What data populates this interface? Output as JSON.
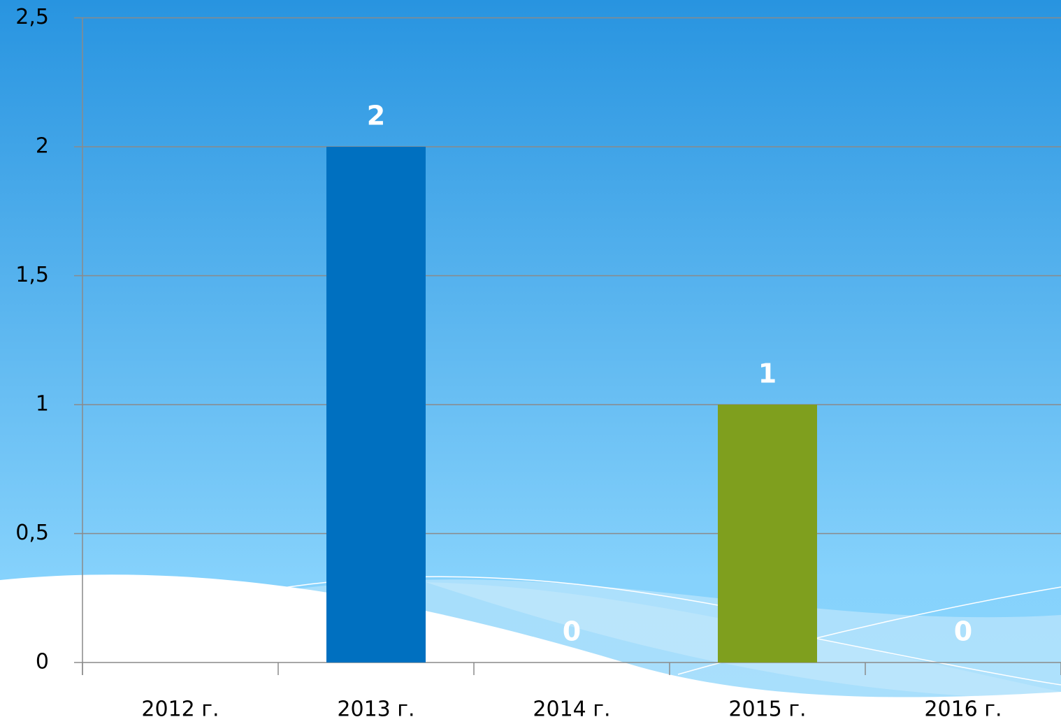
{
  "chart_data": {
    "type": "bar",
    "categories": [
      "2012 г.",
      "2013 г.",
      "2014 г.",
      "2015 г.",
      "2016 г."
    ],
    "values": [
      null,
      2,
      0,
      1,
      0
    ],
    "colors": [
      "#0070c0",
      "#0070c0",
      "#0070c0",
      "#7f9f1e",
      "#0070c0"
    ],
    "ylim": [
      0,
      2.5
    ],
    "yticks": [
      0,
      {
        "value": 0.5,
        "label": "0,5"
      },
      1,
      {
        "value": 1.5,
        "label": "1,5"
      },
      2,
      {
        "value": 2.5,
        "label": "2,5"
      }
    ],
    "grid": true
  }
}
